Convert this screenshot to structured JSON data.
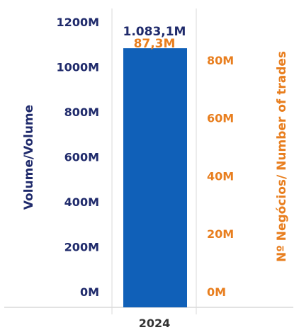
{
  "chart_data": {
    "type": "bar",
    "categories": [
      "2024"
    ],
    "series": [
      {
        "values": [
          1083.1
        ],
        "axis": "left",
        "color": "#1060b8"
      },
      {
        "values": [
          87.3
        ],
        "axis": "right",
        "color": "#e87e1e",
        "marker_only": true
      }
    ],
    "data_labels": [
      "1.083,1M",
      "87,3M"
    ],
    "ylabel": "Volume/Volume",
    "ylabel_right": "Nº Negócios/ Number of trades",
    "ylim": [
      0,
      1200
    ],
    "ylim_right": [
      0,
      90
    ],
    "yticks": [
      "0M",
      "200M",
      "400M",
      "600M",
      "800M",
      "1000M",
      "1200M"
    ],
    "yticks_right": [
      "0M",
      "20M",
      "40M",
      "60M",
      "80M"
    ],
    "grid": false,
    "colors": {
      "left_axis": "#1f2a6b",
      "right_axis": "#e87e1e",
      "bar": "#1060b8",
      "frame": "#d9d9d9",
      "category": "#333333"
    }
  }
}
